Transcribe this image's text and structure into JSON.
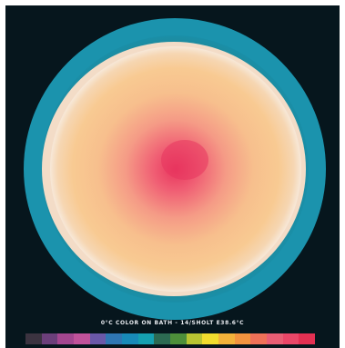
{
  "image": {
    "subject": "thermal-disc",
    "background_color": "#06161d"
  },
  "thermal": {
    "zones": [
      "#e8355e",
      "#f47a7e",
      "#f6b08d",
      "#f8c98f",
      "#f7e8d8",
      "#3f6b57",
      "#0f7f9a",
      "#1a95b0"
    ]
  },
  "legend": {
    "label": "0°C   COLOR ON   BATH - 14/SHOLT   E38.6°C"
  },
  "scale": {
    "colors": [
      "#3b3340",
      "#6b3f7a",
      "#a3468f",
      "#c0529a",
      "#6a58a8",
      "#2f76b2",
      "#188ab8",
      "#15a0b0",
      "#2c6a52",
      "#4d8f3a",
      "#b8c432",
      "#f0dc2e",
      "#f2b23a",
      "#f2943f",
      "#ee7158",
      "#e85e74",
      "#e94768",
      "#e33052"
    ]
  }
}
